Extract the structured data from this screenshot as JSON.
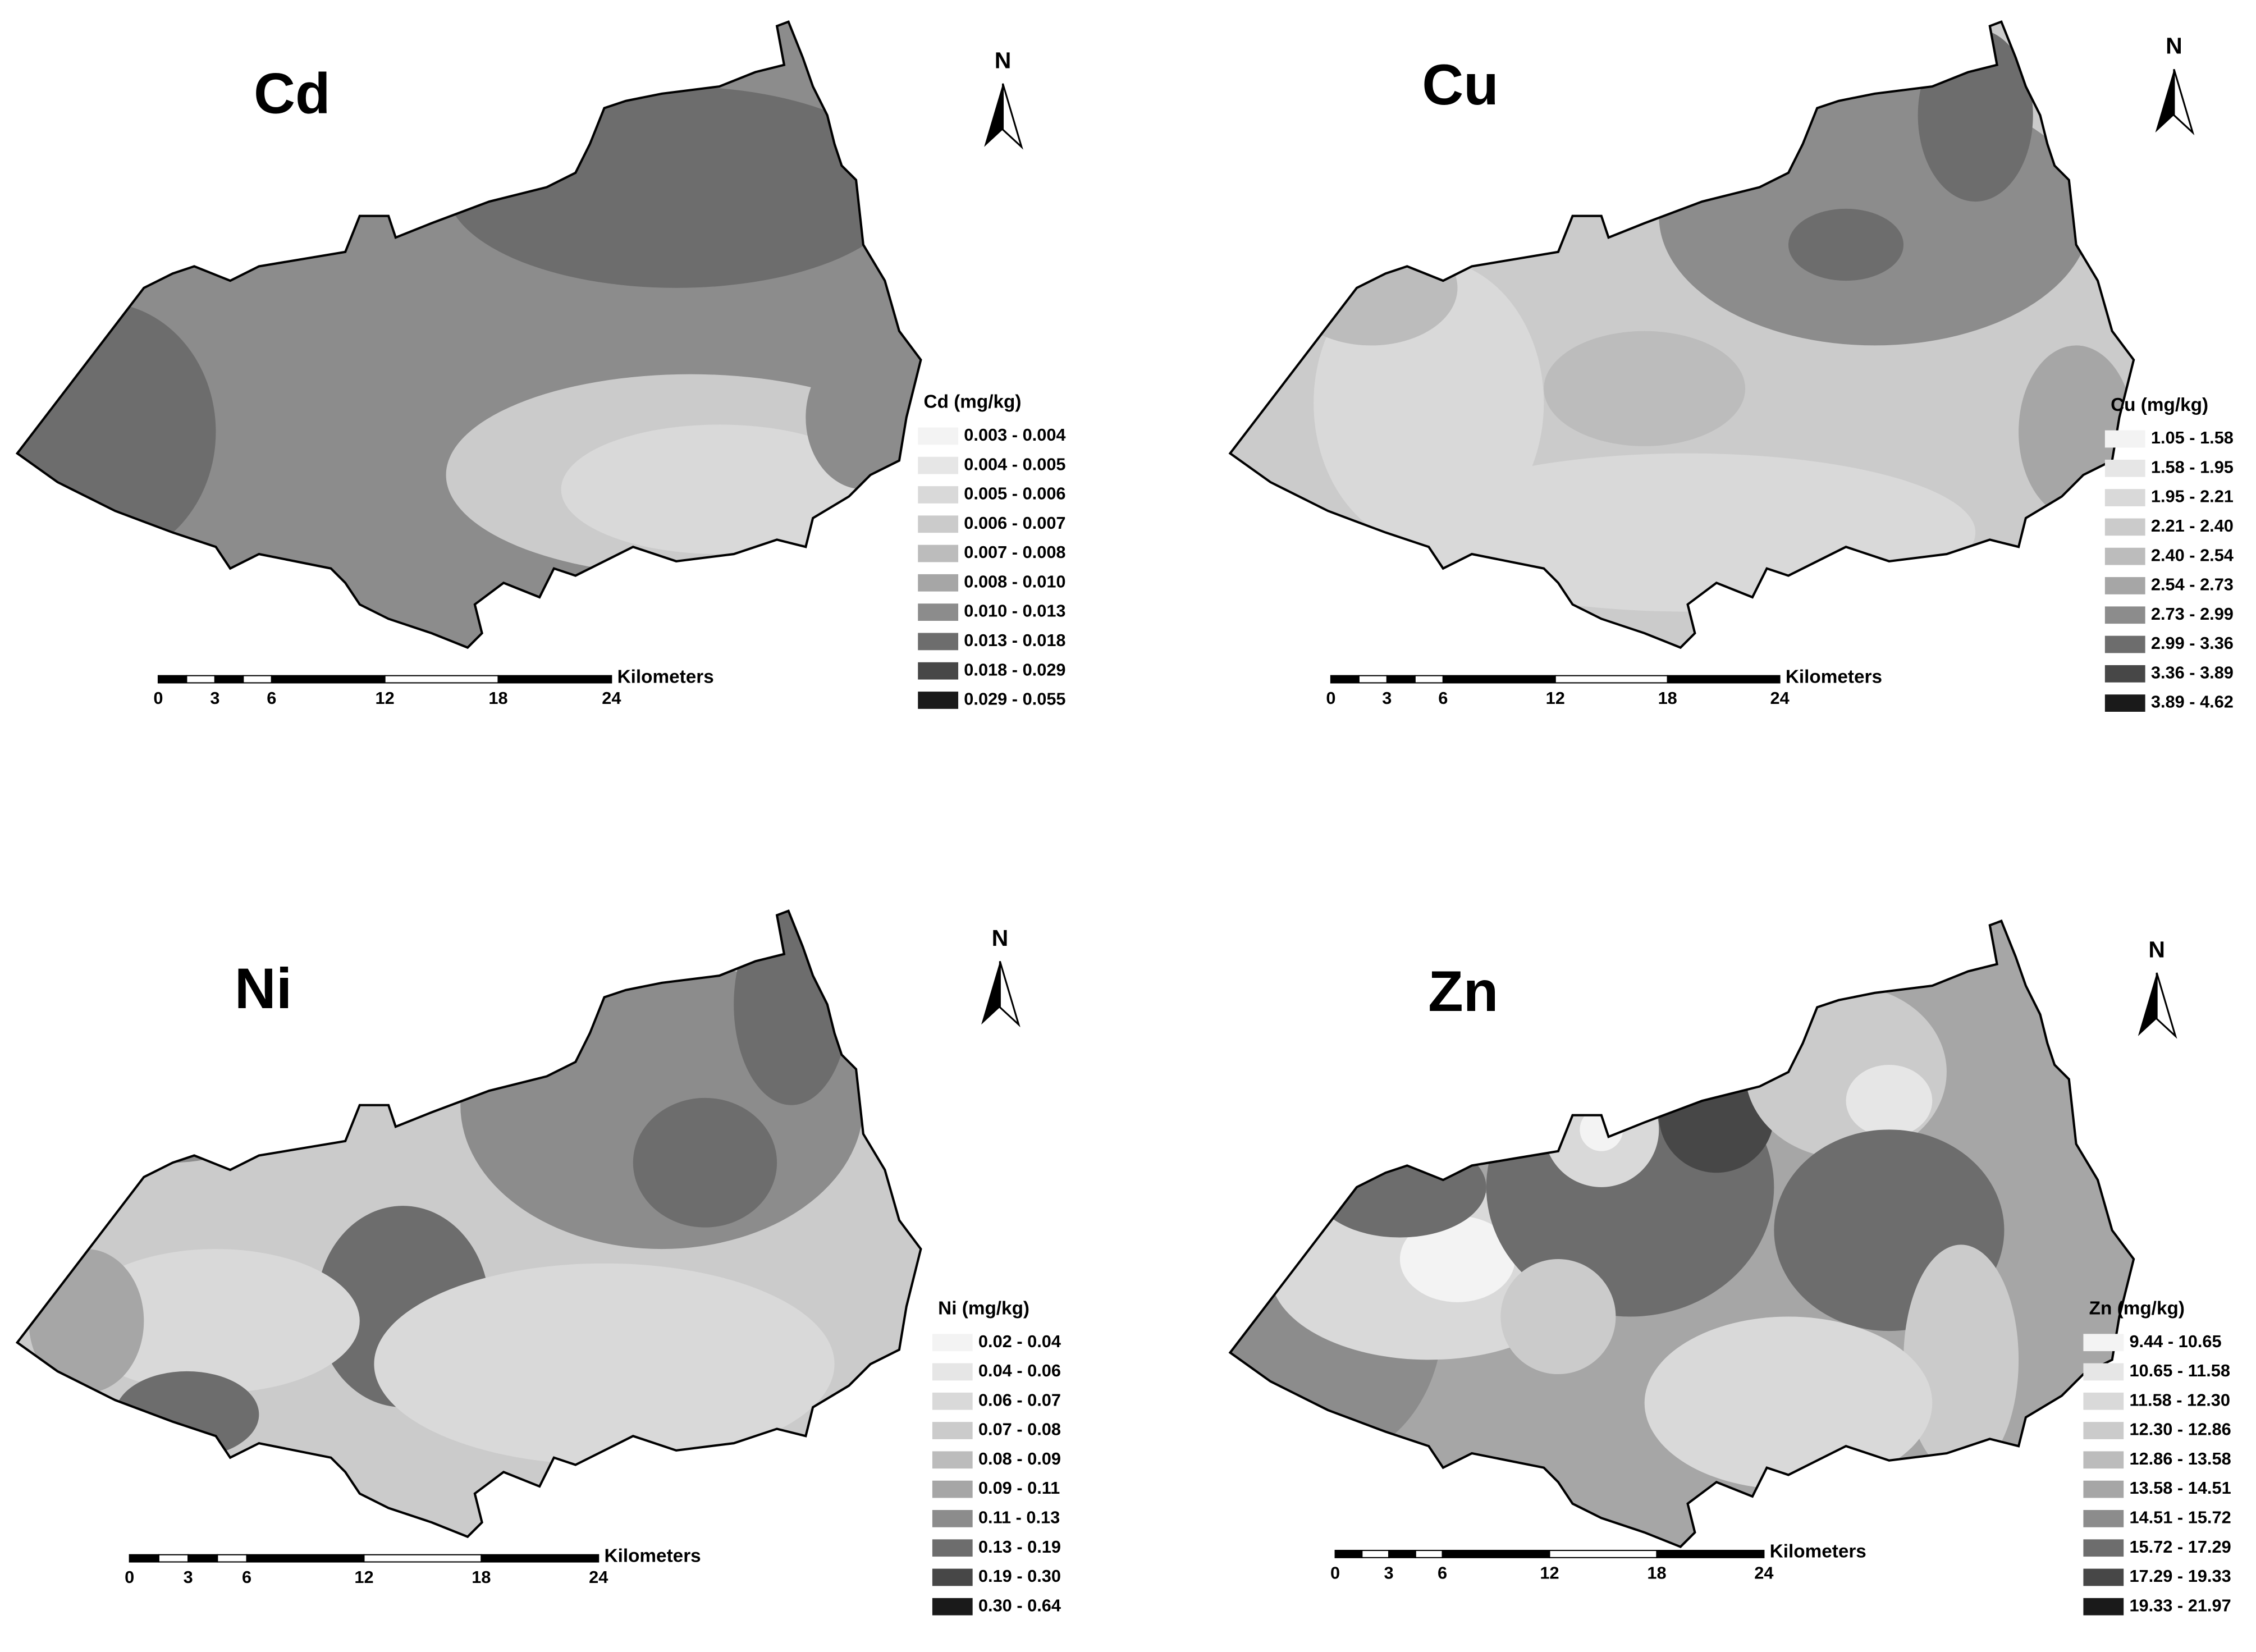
{
  "panels": [
    {
      "title": "Cd",
      "north": "N",
      "legend_title": "Cd (mg/kg)",
      "scale_unit": "Kilometers",
      "scale_ticks": [
        0,
        3,
        6,
        12,
        18,
        24
      ],
      "classes": [
        {
          "label": "0.003 - 0.004",
          "color": "#f3f3f3"
        },
        {
          "label": "0.004 - 0.005",
          "color": "#e6e6e6"
        },
        {
          "label": "0.005 - 0.006",
          "color": "#d9d9d9"
        },
        {
          "label": "0.006 - 0.007",
          "color": "#cbcbcb"
        },
        {
          "label": "0.007 - 0.008",
          "color": "#bcbcbc"
        },
        {
          "label": "0.008 - 0.010",
          "color": "#a6a6a6"
        },
        {
          "label": "0.010 - 0.013",
          "color": "#8c8c8c"
        },
        {
          "label": "0.013 - 0.018",
          "color": "#6d6d6d"
        },
        {
          "label": "0.018 - 0.029",
          "color": "#474747"
        },
        {
          "label": "0.029 - 0.055",
          "color": "#1a1a1a"
        }
      ]
    },
    {
      "title": "Cu",
      "north": "N",
      "legend_title": "Cu (mg/kg)",
      "scale_unit": "Kilometers",
      "scale_ticks": [
        0,
        3,
        6,
        12,
        18,
        24
      ],
      "classes": [
        {
          "label": "1.05 - 1.58",
          "color": "#f3f3f3"
        },
        {
          "label": "1.58 - 1.95",
          "color": "#e6e6e6"
        },
        {
          "label": "1.95 - 2.21",
          "color": "#d9d9d9"
        },
        {
          "label": "2.21 - 2.40",
          "color": "#cbcbcb"
        },
        {
          "label": "2.40 - 2.54",
          "color": "#bcbcbc"
        },
        {
          "label": "2.54 - 2.73",
          "color": "#a6a6a6"
        },
        {
          "label": "2.73 - 2.99",
          "color": "#8c8c8c"
        },
        {
          "label": "2.99 - 3.36",
          "color": "#6d6d6d"
        },
        {
          "label": "3.36 - 3.89",
          "color": "#474747"
        },
        {
          "label": "3.89 - 4.62",
          "color": "#1a1a1a"
        }
      ]
    },
    {
      "title": "Ni",
      "north": "N",
      "legend_title": "Ni (mg/kg)",
      "scale_unit": "Kilometers",
      "scale_ticks": [
        0,
        3,
        6,
        12,
        18,
        24
      ],
      "classes": [
        {
          "label": "0.02 - 0.04",
          "color": "#f3f3f3"
        },
        {
          "label": "0.04 - 0.06",
          "color": "#e6e6e6"
        },
        {
          "label": "0.06 - 0.07",
          "color": "#d9d9d9"
        },
        {
          "label": "0.07 - 0.08",
          "color": "#cbcbcb"
        },
        {
          "label": "0.08 - 0.09",
          "color": "#bcbcbc"
        },
        {
          "label": "0.09 - 0.11",
          "color": "#a6a6a6"
        },
        {
          "label": "0.11 - 0.13",
          "color": "#8c8c8c"
        },
        {
          "label": "0.13 - 0.19",
          "color": "#6d6d6d"
        },
        {
          "label": "0.19 - 0.30",
          "color": "#474747"
        },
        {
          "label": "0.30 - 0.64",
          "color": "#1a1a1a"
        }
      ]
    },
    {
      "title": "Zn",
      "north": "N",
      "legend_title": "Zn (mg/kg)",
      "scale_unit": "Kilometers",
      "scale_ticks": [
        0,
        3,
        6,
        12,
        18,
        24
      ],
      "classes": [
        {
          "label": "9.44 - 10.65",
          "color": "#f3f3f3"
        },
        {
          "label": "10.65 - 11.58",
          "color": "#e6e6e6"
        },
        {
          "label": "11.58 - 12.30",
          "color": "#d9d9d9"
        },
        {
          "label": "12.30 - 12.86",
          "color": "#cbcbcb"
        },
        {
          "label": "12.86 - 13.58",
          "color": "#bcbcbc"
        },
        {
          "label": "13.58 - 14.51",
          "color": "#a6a6a6"
        },
        {
          "label": "14.51 - 15.72",
          "color": "#8c8c8c"
        },
        {
          "label": "15.72 - 17.29",
          "color": "#6d6d6d"
        },
        {
          "label": "17.29 - 19.33",
          "color": "#474747"
        },
        {
          "label": "19.33 - 21.97",
          "color": "#1a1a1a"
        }
      ]
    }
  ]
}
